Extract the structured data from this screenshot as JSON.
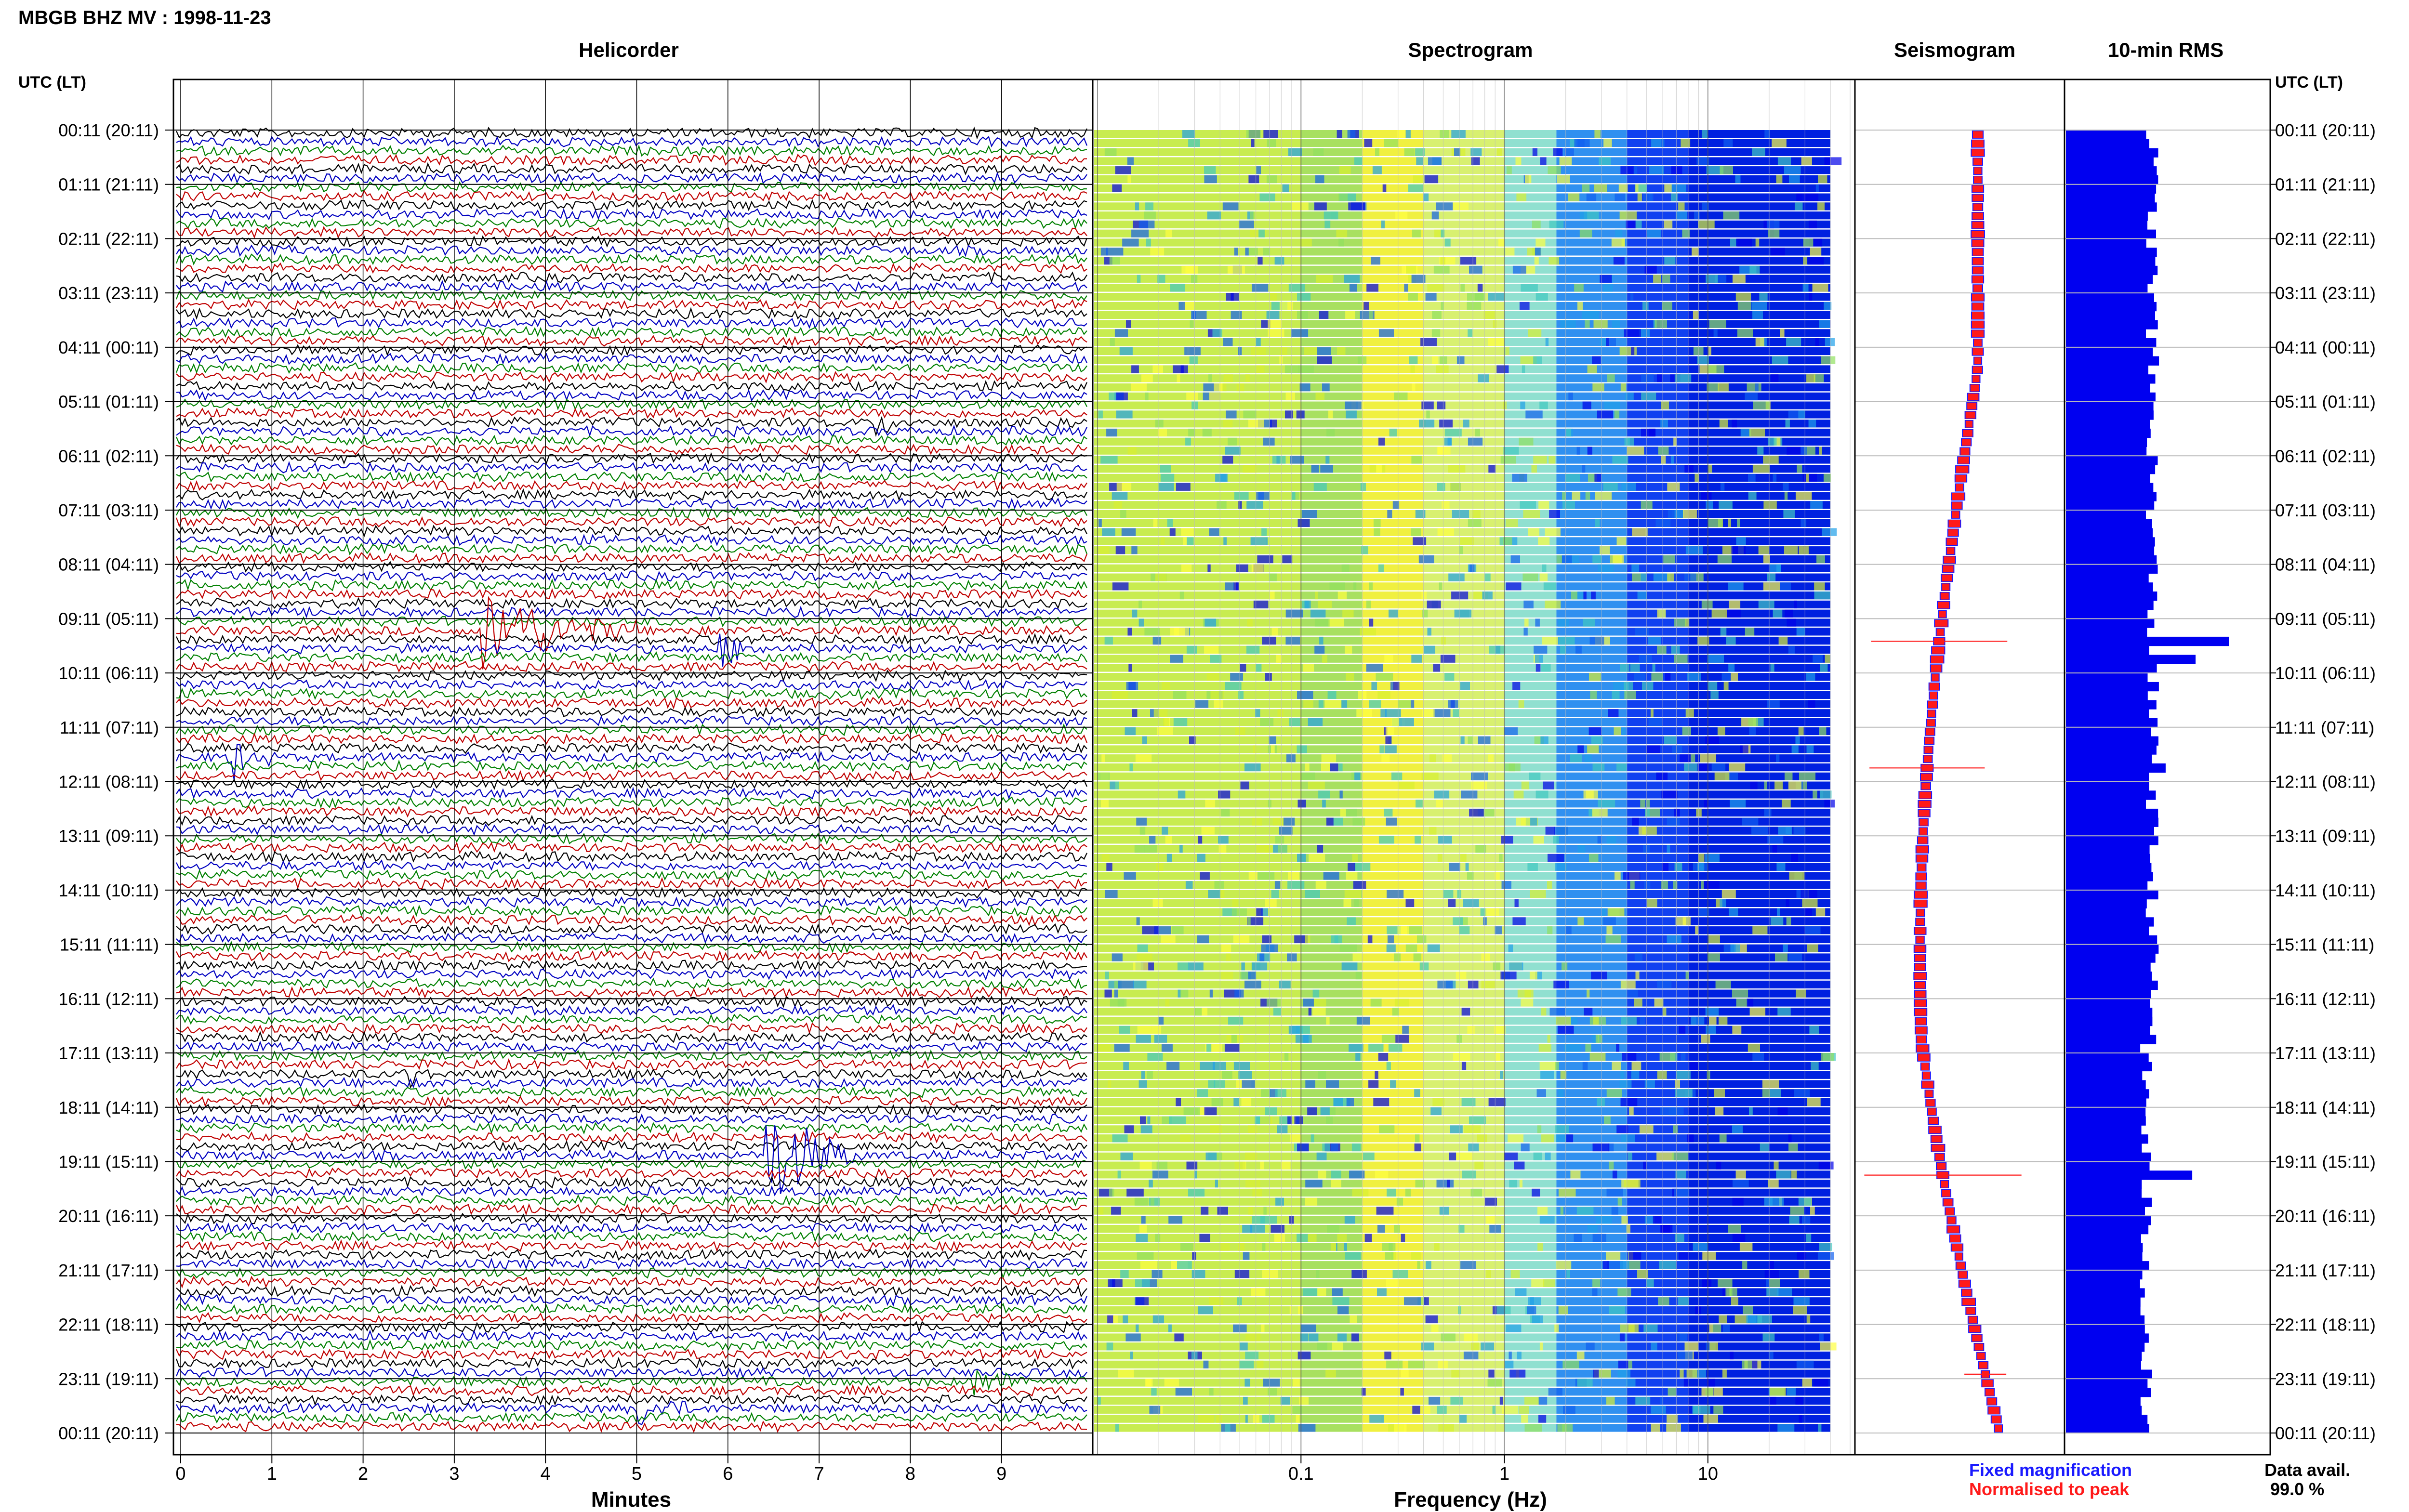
{
  "header": {
    "title": "MBGB BHZ MV : 1998-11-23",
    "utc_left": "UTC (LT)",
    "utc_right": "UTC (LT)"
  },
  "panels": {
    "helicorder": "Helicorder",
    "spectrogram": "Spectrogram",
    "seismogram": "Seismogram",
    "rms": "10-min RMS"
  },
  "time_labels": [
    "00:11 (20:11)",
    "01:11 (21:11)",
    "02:11 (22:11)",
    "03:11 (23:11)",
    "04:11 (00:11)",
    "05:11 (01:11)",
    "06:11 (02:11)",
    "07:11 (03:11)",
    "08:11 (04:11)",
    "09:11 (05:11)",
    "10:11 (06:11)",
    "11:11 (07:11)",
    "12:11 (08:11)",
    "13:11 (09:11)",
    "14:11 (10:11)",
    "15:11 (11:11)",
    "16:11 (12:11)",
    "17:11 (13:11)",
    "18:11 (14:11)",
    "19:11 (15:11)",
    "20:11 (16:11)",
    "21:11 (17:11)",
    "22:11 (18:11)",
    "23:11 (19:11)",
    "00:11 (20:11)"
  ],
  "legend": {
    "fixed": "Fixed magnification",
    "fixed_color": "#1a1aff",
    "normalised": "Normalised to peak",
    "normalised_color": "#ff1a1a"
  },
  "availability": {
    "label": "Data avail.",
    "value": "99.0 %"
  },
  "chart_data": [
    {
      "type": "line",
      "panel": "Helicorder",
      "xlabel": "Minutes",
      "xlim": [
        0,
        10
      ],
      "x_ticks": [
        "0",
        "1",
        "2",
        "3",
        "4",
        "5",
        "6",
        "7",
        "8",
        "9"
      ],
      "rows": 144,
      "row_minutes": 10,
      "trace_colors": [
        "#000000",
        "#0000c0",
        "#008000",
        "#c00000"
      ],
      "events": [
        {
          "row": 55,
          "start_min": 3.3,
          "end_min": 5.0,
          "amplitude": 3.2
        },
        {
          "row": 57,
          "start_min": 5.9,
          "end_min": 6.4,
          "amplitude": 1.2
        },
        {
          "row": 69,
          "start_min": 0.5,
          "end_min": 1.0,
          "amplitude": 2.0
        },
        {
          "row": 104,
          "start_min": 2.5,
          "end_min": 2.7,
          "amplitude": 1.6
        },
        {
          "row": 113,
          "start_min": 6.4,
          "end_min": 7.4,
          "amplitude": 4.5
        },
        {
          "row": 138,
          "start_min": 8.7,
          "end_min": 9.4,
          "amplitude": 1.0
        },
        {
          "row": 141,
          "start_min": 5.0,
          "end_min": 5.6,
          "amplitude": 1.4
        },
        {
          "row": 32,
          "start_min": 7.6,
          "end_min": 8.0,
          "amplitude": 1.0
        }
      ]
    },
    {
      "type": "heatmap",
      "panel": "Spectrogram",
      "xlabel": "Frequency (Hz)",
      "xscale": "log",
      "xlim": [
        0.01,
        50
      ],
      "x_ticks": [
        "0.1",
        "1",
        "10"
      ],
      "colormap": [
        "#ffff40",
        "#d8f030",
        "#90e060",
        "#40c8c0",
        "#20a0e8",
        "#1060f0",
        "#0000e8"
      ],
      "band_edges_hz": [
        0.1,
        0.2,
        0.4,
        1.0,
        1.8,
        4.0,
        8.0,
        40.0
      ],
      "band_colors": [
        "#c8ec50",
        "#a8e060",
        "#f0f040",
        "#d8f070",
        "#90e0d0",
        "#3090f0",
        "#1040f0",
        "#0020e0"
      ]
    },
    {
      "type": "line",
      "panel": "Seismogram",
      "series": [
        {
          "name": "Fixed magnification",
          "color": "#1a1aff"
        },
        {
          "name": "Normalised to peak",
          "color": "#ff1a1a"
        }
      ],
      "spikes": [
        {
          "row": 56,
          "width": 0.65
        },
        {
          "row": 70,
          "width": 0.55
        },
        {
          "row": 115,
          "width": 0.75
        },
        {
          "row": 137,
          "width": 0.2
        }
      ]
    },
    {
      "type": "bar",
      "panel": "10-min RMS",
      "orientation": "horizontal",
      "rows": 144,
      "baseline": 0.52,
      "peaks": [
        {
          "row": 56,
          "value": 0.98
        },
        {
          "row": 58,
          "value": 0.78
        },
        {
          "row": 70,
          "value": 0.6
        },
        {
          "row": 115,
          "value": 0.76
        }
      ]
    }
  ]
}
